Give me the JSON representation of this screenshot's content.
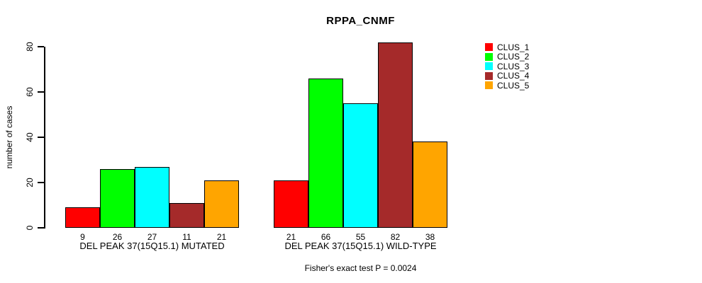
{
  "title": "RPPA_CNMF",
  "y_axis": {
    "label": "number of cases",
    "ticks": [
      0,
      20,
      40,
      60,
      80
    ]
  },
  "caption": "Fisher's exact test P = 0.0024",
  "legend": {
    "position": "right",
    "items": [
      {
        "label": "CLUS_1",
        "color": "#FF0000"
      },
      {
        "label": "CLUS_2",
        "color": "#00FF00"
      },
      {
        "label": "CLUS_3",
        "color": "#00FFFF"
      },
      {
        "label": "CLUS_4",
        "color": "#A52A2A"
      },
      {
        "label": "CLUS_5",
        "color": "#FFA500"
      }
    ]
  },
  "chart_data": {
    "type": "bar",
    "title": "RPPA_CNMF",
    "xlabel": "",
    "ylabel": "number of cases",
    "ylim": [
      0,
      82
    ],
    "yticks": [
      0,
      20,
      40,
      60,
      80
    ],
    "grid": false,
    "legend_position": "top-right",
    "series": [
      "CLUS_1",
      "CLUS_2",
      "CLUS_3",
      "CLUS_4",
      "CLUS_5"
    ],
    "series_colors": [
      "#FF0000",
      "#00FF00",
      "#00FFFF",
      "#A52A2A",
      "#FFA500"
    ],
    "groups": [
      {
        "label": "DEL PEAK 37(15Q15.1) MUTATED",
        "values": [
          9,
          26,
          27,
          11,
          21
        ]
      },
      {
        "label": "DEL PEAK 37(15Q15.1) WILD-TYPE",
        "values": [
          21,
          66,
          55,
          82,
          38
        ]
      }
    ],
    "value_labels_shown": true,
    "footnote": "Fisher's exact test P = 0.0024"
  }
}
